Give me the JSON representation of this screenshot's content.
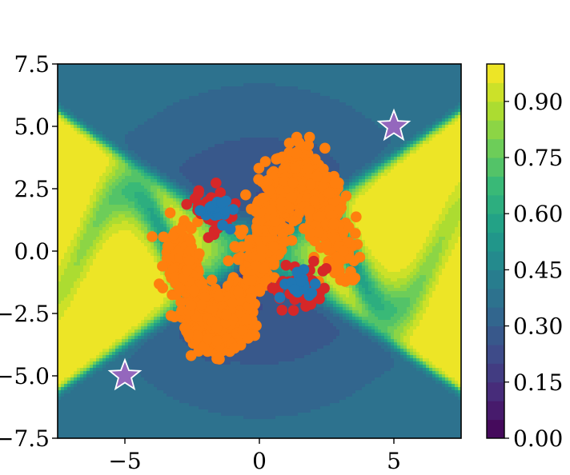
{
  "chart_data": [
    {
      "type": "contour",
      "title": "",
      "xlabel": "",
      "ylabel": "",
      "xlim": [
        -7.5,
        7.5
      ],
      "ylim": [
        -7.5,
        7.5
      ],
      "x_ticks": [
        -5,
        0,
        5
      ],
      "x_tick_labels": [
        "−5",
        "0",
        "5"
      ],
      "y_ticks": [
        7.5,
        5.0,
        2.5,
        0.0,
        -2.5,
        -5.0,
        -7.5
      ],
      "y_tick_labels": [
        "7.5",
        "5.0",
        "2.5",
        "0.0",
        "−2.5",
        "−5.0",
        "−7.5"
      ],
      "colormap": "viridis",
      "value_range": [
        0.0,
        1.0
      ],
      "grid": false,
      "series": [
        {
          "type": "scatter",
          "color": "#ff7f0e",
          "marker": "circle",
          "shape": "sine-shaped band",
          "x_range": [
            -3.5,
            3.5
          ],
          "y_range": [
            -4.3,
            4.3
          ]
        },
        {
          "type": "scatter",
          "color": "#d62728",
          "marker": "circle",
          "clusters": [
            {
              "center": [
                -1.7,
                1.6
              ],
              "spread": 0.45
            },
            {
              "center": [
                1.6,
                -1.4
              ],
              "spread": 0.55
            }
          ]
        },
        {
          "type": "scatter",
          "color": "#1f77b4",
          "marker": "circle",
          "clusters": [
            {
              "center": [
                -1.6,
                1.6
              ],
              "spread": 0.25
            },
            {
              "center": [
                1.5,
                -1.4
              ],
              "spread": 0.25
            }
          ]
        },
        {
          "type": "scatter",
          "color": "#9467bd",
          "marker": "star",
          "points": [
            [
              5.0,
              5.0
            ],
            [
              -5.0,
              -5.0
            ]
          ]
        }
      ]
    },
    {
      "type": "colorbar",
      "colormap": "viridis",
      "range": [
        0.0,
        1.0
      ],
      "levels": 20,
      "ticks": [
        0.0,
        0.15,
        0.3,
        0.45,
        0.6,
        0.75,
        0.9
      ],
      "tick_labels": [
        "0.00",
        "0.15",
        "0.30",
        "0.45",
        "0.60",
        "0.75",
        "0.90"
      ]
    }
  ]
}
